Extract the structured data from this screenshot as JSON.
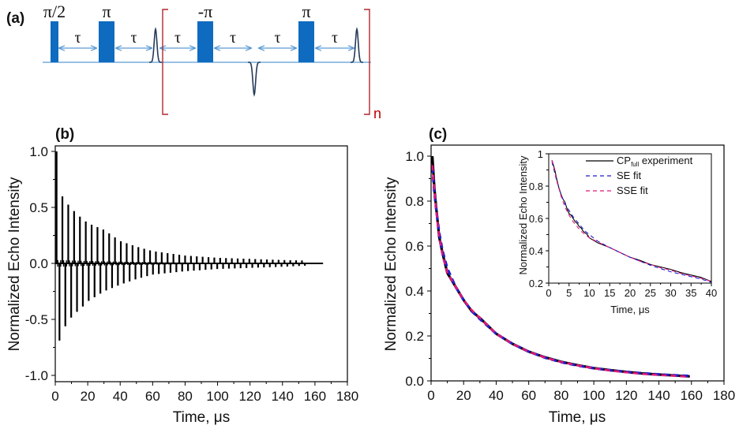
{
  "figure": {
    "panel_labels": {
      "a": "(a)",
      "b": "(b)",
      "c": "(c)"
    },
    "colors": {
      "pulse": "#0e6bbf",
      "arrow": "#5b9bd5",
      "echo": "#243a5a",
      "bracket": "#b0272d",
      "repeat_label": "#c00000",
      "experiment": "#000000",
      "se_fit": "#1f1fcc",
      "sse_fit": "#e0187a"
    }
  },
  "pulse_sequence": {
    "pulses": [
      {
        "label": "π/2",
        "kind": "half"
      },
      {
        "label": "π",
        "kind": "full"
      },
      {
        "label": "-π",
        "kind": "full"
      },
      {
        "label": "π",
        "kind": "full"
      }
    ],
    "delays": [
      "τ",
      "τ",
      "τ",
      "τ",
      "τ",
      "τ"
    ],
    "echoes": [
      "positive",
      "negative",
      "positive"
    ],
    "repeat_label": "n"
  },
  "chart_data": [
    {
      "id": "b",
      "type": "line",
      "title": "",
      "xlabel": "Time, μs",
      "ylabel": "Normalized Echo Intensity",
      "xlim": [
        0,
        180
      ],
      "ylim": [
        -1.05,
        1.05
      ],
      "xticks": [
        0,
        20,
        40,
        60,
        80,
        100,
        120,
        140,
        160,
        180
      ],
      "yticks": [
        -1.0,
        -0.5,
        0.0,
        0.5,
        1.0
      ],
      "ytick_labels": [
        "-1.0",
        "-0.5",
        "0.0",
        "0.5",
        "1.0"
      ],
      "grid": false,
      "legend": null,
      "description": "Alternating positive/negative echo train decaying to zero",
      "series": [
        {
          "name": "echo train",
          "echo_period_us": 1.8,
          "positive_envelope": {
            "t": [
              0.8,
              3.5,
              6.5,
              10,
              15,
              20,
              30,
              40,
              50,
              60,
              80,
              100,
              120,
              140,
              155
            ],
            "y": [
              1.0,
              0.62,
              0.55,
              0.49,
              0.42,
              0.36,
              0.3,
              0.2,
              0.15,
              0.11,
              0.07,
              0.05,
              0.04,
              0.03,
              0.025
            ]
          },
          "negative_envelope": {
            "t": [
              2.3,
              5,
              7.5,
              12,
              16,
              20,
              30,
              40,
              50,
              60,
              80,
              100,
              120,
              140,
              155
            ],
            "y": [
              -0.7,
              -0.6,
              -0.52,
              -0.45,
              -0.4,
              -0.34,
              -0.25,
              -0.19,
              -0.14,
              -0.1,
              -0.07,
              -0.05,
              -0.04,
              -0.03,
              -0.02
            ]
          },
          "baseline_end_us": 165
        }
      ]
    },
    {
      "id": "c",
      "type": "line",
      "title": "",
      "xlabel": "Time, μs",
      "ylabel": "Normalized Echo Intensity",
      "xlim": [
        0,
        180
      ],
      "ylim": [
        0.0,
        1.05
      ],
      "xticks": [
        0,
        20,
        40,
        60,
        80,
        100,
        120,
        140,
        160,
        180
      ],
      "yticks": [
        0.0,
        0.2,
        0.4,
        0.6,
        0.8,
        1.0
      ],
      "ytick_labels": [
        "0.0",
        "0.2",
        "0.4",
        "0.6",
        "0.8",
        "1.0"
      ],
      "grid": false,
      "series": [
        {
          "name": "CP_full experiment",
          "style": "solid",
          "x": [
            0.8,
            2,
            3,
            5,
            7,
            10,
            15,
            20,
            25,
            30,
            40,
            50,
            60,
            70,
            80,
            90,
            100,
            110,
            120,
            130,
            140,
            150,
            159
          ],
          "y": [
            1.0,
            0.86,
            0.78,
            0.64,
            0.57,
            0.48,
            0.42,
            0.36,
            0.31,
            0.28,
            0.21,
            0.165,
            0.13,
            0.105,
            0.085,
            0.07,
            0.057,
            0.048,
            0.04,
            0.033,
            0.028,
            0.024,
            0.02
          ]
        },
        {
          "name": "SE fit",
          "style": "dashed",
          "x": [
            0.8,
            2,
            3,
            5,
            7,
            10,
            15,
            20,
            25,
            30,
            40,
            50,
            60,
            70,
            80,
            90,
            100,
            110,
            120,
            130,
            140,
            150,
            159
          ],
          "y": [
            0.95,
            0.84,
            0.77,
            0.66,
            0.58,
            0.5,
            0.42,
            0.36,
            0.31,
            0.275,
            0.21,
            0.165,
            0.13,
            0.103,
            0.083,
            0.068,
            0.056,
            0.047,
            0.04,
            0.034,
            0.029,
            0.025,
            0.022
          ]
        },
        {
          "name": "SSE fit",
          "style": "dashed",
          "x": [
            0.8,
            2,
            3,
            5,
            7,
            10,
            15,
            20,
            25,
            30,
            40,
            50,
            60,
            70,
            80,
            90,
            100,
            110,
            120,
            130,
            140,
            150,
            159
          ],
          "y": [
            0.96,
            0.85,
            0.77,
            0.64,
            0.56,
            0.48,
            0.42,
            0.36,
            0.315,
            0.28,
            0.21,
            0.165,
            0.13,
            0.104,
            0.084,
            0.069,
            0.056,
            0.046,
            0.038,
            0.031,
            0.026,
            0.022,
            0.018
          ]
        }
      ],
      "inset": {
        "type": "line",
        "xlabel": "Time, μs",
        "ylabel": "Normalized Echo Intensity",
        "xlim": [
          0,
          40
        ],
        "ylim": [
          0.2,
          1.0
        ],
        "xticks": [
          0,
          5,
          10,
          15,
          20,
          25,
          30,
          35,
          40
        ],
        "yticks": [
          0.2,
          0.4,
          0.6,
          0.8,
          1.0
        ],
        "ytick_labels": [
          "0.2",
          "0.4",
          "0.6",
          "0.8",
          "1"
        ],
        "legend_position": "top-right",
        "legend": [
          {
            "name_main": "CP",
            "name_sub": "full",
            "name_rest": " experiment",
            "style": "solid"
          },
          {
            "name_main": "SE fit",
            "name_sub": "",
            "name_rest": "",
            "style": "dashed"
          },
          {
            "name_main": "SSE fit",
            "name_sub": "",
            "name_rest": "",
            "style": "dashed"
          }
        ],
        "series": [
          {
            "name": "CP_full experiment",
            "style": "solid",
            "x": [
              0.8,
              1.5,
              2,
              2.5,
              3,
              3.5,
              4,
              4.5,
              5,
              5.5,
              6,
              6.5,
              7,
              7.5,
              8,
              8.5,
              9,
              9.5,
              10,
              11,
              12,
              13,
              14,
              15,
              17.5,
              20,
              22.5,
              25,
              27.5,
              30,
              32.5,
              35,
              37.5,
              40
            ],
            "y": [
              0.96,
              0.9,
              0.84,
              0.79,
              0.75,
              0.72,
              0.7,
              0.66,
              0.63,
              0.62,
              0.6,
              0.58,
              0.57,
              0.55,
              0.54,
              0.52,
              0.51,
              0.5,
              0.48,
              0.465,
              0.45,
              0.44,
              0.43,
              0.42,
              0.39,
              0.36,
              0.34,
              0.315,
              0.3,
              0.285,
              0.265,
              0.25,
              0.235,
              0.21
            ]
          },
          {
            "name": "SE fit",
            "style": "dashed",
            "x": [
              0.8,
              1.5,
              2,
              3,
              4,
              5,
              6,
              7,
              8,
              9,
              10,
              12,
              15,
              17.5,
              20,
              22.5,
              25,
              27.5,
              30,
              32.5,
              35,
              37.5,
              40
            ],
            "y": [
              0.95,
              0.88,
              0.83,
              0.75,
              0.69,
              0.65,
              0.61,
              0.58,
              0.55,
              0.52,
              0.5,
              0.46,
              0.42,
              0.39,
              0.36,
              0.335,
              0.31,
              0.29,
              0.27,
              0.255,
              0.24,
              0.225,
              0.205
            ]
          },
          {
            "name": "SSE fit",
            "style": "dashed",
            "x": [
              0.8,
              1.5,
              2,
              3,
              4,
              5,
              6,
              7,
              8,
              9,
              10,
              12,
              15,
              17.5,
              20,
              22.5,
              25,
              27.5,
              30,
              32.5,
              35,
              37.5,
              40
            ],
            "y": [
              0.96,
              0.89,
              0.83,
              0.74,
              0.67,
              0.62,
              0.58,
              0.55,
              0.52,
              0.5,
              0.48,
              0.455,
              0.42,
              0.39,
              0.36,
              0.335,
              0.315,
              0.295,
              0.28,
              0.26,
              0.245,
              0.23,
              0.21
            ]
          }
        ]
      }
    }
  ]
}
